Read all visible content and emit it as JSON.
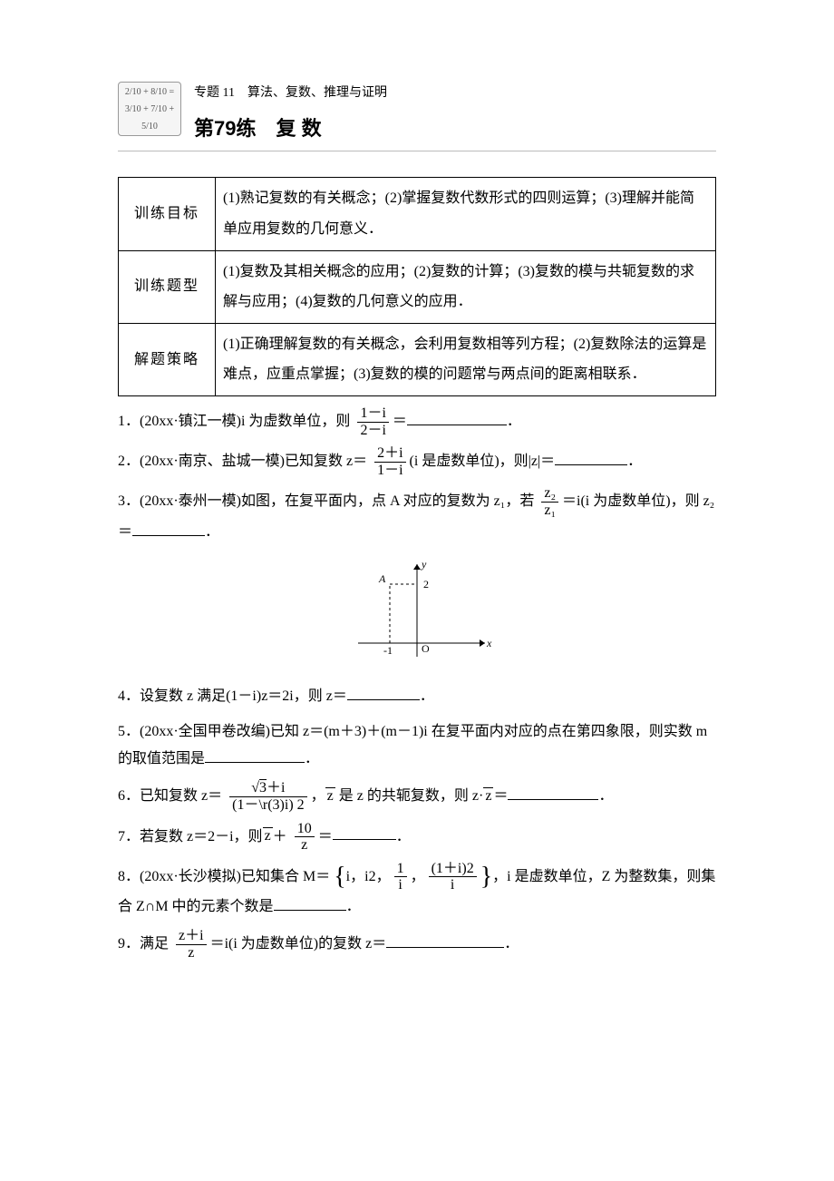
{
  "header": {
    "topic": "专题 11　算法、复数、推理与证明",
    "title": "第79练　复 数",
    "icon_text": "2/10 + 8/10 = 3/10 + 7/10 + 5/10"
  },
  "table": [
    {
      "label": "训练目标",
      "content": "(1)熟记复数的有关概念；(2)掌握复数代数形式的四则运算；(3)理解并能简单应用复数的几何意义．"
    },
    {
      "label": "训练题型",
      "content": "(1)复数及其相关概念的应用；(2)复数的计算；(3)复数的模与共轭复数的求解与应用；(4)复数的几何意义的应用．"
    },
    {
      "label": "解题策略",
      "content": "(1)正确理解复数的有关概念，会利用复数相等列方程；(2)复数除法的运算是难点，应重点掌握；(3)复数的模的问题常与两点间的距离相联系．"
    }
  ],
  "problems": {
    "p1": {
      "prefix": "1．(20xx·镇江一模)i 为虚数单位，则",
      "eq": "＝",
      "frac_num": "1－i",
      "frac_den": "2－i",
      "tail": "．",
      "blank_w": 110
    },
    "p2": {
      "prefix": "2．(20xx·南京、盐城一模)已知复数 z＝",
      "frac_num": "2＋i",
      "frac_den": "1－i",
      "mid": "(i 是虚数单位)，则|z|＝",
      "tail": "．",
      "blank_w": 80
    },
    "p3a": {
      "prefix": "3．(20xx·泰州一模)如图，在复平面内，点 A 对应的复数为 z₁，若",
      "frac_num": "z₂",
      "frac_den": "z₁",
      "mid": "＝i(i 为虚数单位)，则 z₂＝",
      "tail": "．",
      "blank_w": 80
    },
    "fig": {
      "x_label": "x",
      "y_label": "y",
      "O": "O",
      "A": "A",
      "px": "-1",
      "py": "2",
      "width": 170,
      "height": 120
    },
    "p4": {
      "text_a": "4．设复数 z 满足(1－i)z＝2i，则 z＝",
      "tail": "．",
      "blank_w": 80
    },
    "p5": {
      "text_a": "5．(20xx·全国甲卷改编)已知 z＝(m＋3)＋(m－1)i 在复平面内对应的点在第四象限，则实数 m 的取值范围是",
      "tail": "．",
      "blank_w": 110
    },
    "p6": {
      "prefix": "6．已知复数 z＝",
      "frac_num_html": "<span class='sqrt-sym'></span><span class='overline'>3</span>＋i",
      "frac_den_html": "(1－\\r(3)i) 2",
      "mid_html": "，<span class='conj'>z</span> 是 z 的共轭复数，则 z·<span class='conj'>z</span>＝",
      "tail": "．",
      "blank_w": 100
    },
    "p7": {
      "prefix_html": "7．若复数 z＝2－i，则<span class='conj'>z</span>＋",
      "frac_num": "10",
      "frac_den": " z ",
      "eq": "＝",
      "tail": "．",
      "blank_w": 70
    },
    "p8": {
      "prefix": "8．(20xx·长沙模拟)已知集合 M＝",
      "items_html": "i，i2，<span class='frac'><span class='num'>1</span><span class='den'>i</span></span>，<span class='frac'><span class='num'>(1＋i)2</span><span class='den'>i</span></span>",
      "mid": "，i 是虚数单位，Z 为整数集，则集合 Z∩M 中的元素个数是",
      "tail": "．",
      "blank_w": 80
    },
    "p9": {
      "prefix": "9．满足",
      "frac_num": "z＋i",
      "frac_den": " z ",
      "mid": "＝i(i 为虚数单位)的复数 z＝",
      "tail": "．",
      "blank_w": 130
    }
  },
  "colors": {
    "text": "#000000",
    "border": "#000000",
    "bg": "#ffffff"
  }
}
